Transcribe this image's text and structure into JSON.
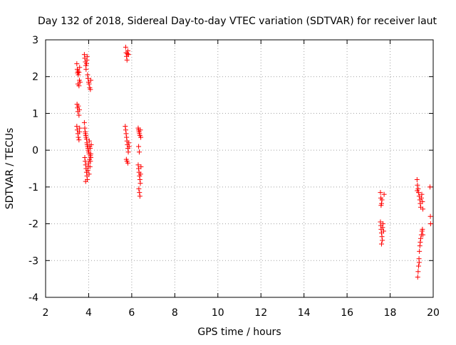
{
  "chart_data": {
    "type": "scatter",
    "title": "Day 132 of 2018, Sidereal Day-to-day VTEC variation (SDTVAR) for receiver laut",
    "xlabel": "GPS time / hours",
    "ylabel": "SDTVAR / TECUs",
    "xlim": [
      2,
      20
    ],
    "ylim": [
      -4,
      3
    ],
    "xticks": [
      2,
      4,
      6,
      8,
      10,
      12,
      14,
      16,
      18,
      20
    ],
    "yticks": [
      -4,
      -3,
      -2,
      -1,
      0,
      1,
      2,
      3
    ],
    "xtick_labels": [
      "2",
      "4",
      "6",
      "8",
      "10",
      "12",
      "14",
      "16",
      "18",
      "20"
    ],
    "ytick_labels": [
      "-4",
      "-3",
      "-2",
      "-1",
      "0",
      "1",
      "2",
      "3"
    ],
    "grid": true,
    "legend": "none",
    "marker": "+",
    "color": "#ff0000",
    "series": [
      {
        "name": "SDTVAR",
        "points": [
          [
            3.45,
            2.35
          ],
          [
            3.47,
            2.2
          ],
          [
            3.48,
            2.1
          ],
          [
            3.5,
            2.15
          ],
          [
            3.52,
            2.05
          ],
          [
            3.55,
            2.12
          ],
          [
            3.57,
            1.9
          ],
          [
            3.5,
            1.8
          ],
          [
            3.55,
            1.75
          ],
          [
            3.6,
            1.85
          ],
          [
            3.58,
            2.25
          ],
          [
            3.46,
            1.25
          ],
          [
            3.48,
            1.15
          ],
          [
            3.5,
            1.05
          ],
          [
            3.52,
            1.2
          ],
          [
            3.55,
            0.95
          ],
          [
            3.57,
            1.1
          ],
          [
            3.45,
            0.65
          ],
          [
            3.47,
            0.55
          ],
          [
            3.5,
            0.45
          ],
          [
            3.52,
            0.35
          ],
          [
            3.55,
            0.28
          ],
          [
            3.57,
            0.5
          ],
          [
            3.58,
            0.6
          ],
          [
            3.8,
            2.6
          ],
          [
            3.82,
            2.5
          ],
          [
            3.85,
            2.4
          ],
          [
            3.87,
            2.3
          ],
          [
            3.88,
            2.2
          ],
          [
            3.9,
            2.35
          ],
          [
            3.92,
            2.45
          ],
          [
            3.93,
            2.55
          ],
          [
            3.95,
            2.05
          ],
          [
            3.97,
            1.95
          ],
          [
            4.0,
            1.85
          ],
          [
            4.02,
            1.8
          ],
          [
            4.05,
            1.7
          ],
          [
            4.08,
            1.65
          ],
          [
            4.1,
            1.9
          ],
          [
            3.8,
            0.75
          ],
          [
            3.82,
            0.6
          ],
          [
            3.84,
            0.5
          ],
          [
            3.85,
            0.45
          ],
          [
            3.87,
            0.4
          ],
          [
            3.88,
            0.35
          ],
          [
            3.9,
            0.3
          ],
          [
            3.92,
            0.2
          ],
          [
            3.93,
            0.15
          ],
          [
            3.95,
            0.1
          ],
          [
            3.97,
            0.05
          ],
          [
            3.98,
            0.0
          ],
          [
            4.0,
            -0.05
          ],
          [
            4.02,
            -0.1
          ],
          [
            4.03,
            0.25
          ],
          [
            4.05,
            0.1
          ],
          [
            4.07,
            0.05
          ],
          [
            4.08,
            -0.15
          ],
          [
            4.1,
            -0.2
          ],
          [
            4.12,
            0.15
          ],
          [
            3.82,
            -0.2
          ],
          [
            3.84,
            -0.3
          ],
          [
            3.86,
            -0.4
          ],
          [
            3.88,
            -0.5
          ],
          [
            3.9,
            -0.6
          ],
          [
            3.92,
            -0.7
          ],
          [
            3.94,
            -0.8
          ],
          [
            3.86,
            -0.85
          ],
          [
            3.96,
            -0.55
          ],
          [
            3.98,
            -0.45
          ],
          [
            4.0,
            -0.35
          ],
          [
            4.02,
            -0.65
          ],
          [
            4.04,
            -0.25
          ],
          [
            4.06,
            -0.45
          ],
          [
            4.08,
            -0.3
          ],
          [
            4.1,
            -0.1
          ],
          [
            5.72,
            2.8
          ],
          [
            5.74,
            2.65
          ],
          [
            5.76,
            2.55
          ],
          [
            5.78,
            2.45
          ],
          [
            5.8,
            2.62
          ],
          [
            5.82,
            2.7
          ],
          [
            5.85,
            2.6
          ],
          [
            5.7,
            0.65
          ],
          [
            5.72,
            0.55
          ],
          [
            5.74,
            0.45
          ],
          [
            5.76,
            0.35
          ],
          [
            5.78,
            0.25
          ],
          [
            5.8,
            0.15
          ],
          [
            5.82,
            0.05
          ],
          [
            5.84,
            -0.05
          ],
          [
            5.86,
            0.2
          ],
          [
            5.88,
            0.1
          ],
          [
            5.75,
            -0.25
          ],
          [
            5.78,
            -0.3
          ],
          [
            5.82,
            -0.35
          ],
          [
            6.3,
            0.6
          ],
          [
            6.32,
            0.55
          ],
          [
            6.34,
            0.5
          ],
          [
            6.36,
            0.45
          ],
          [
            6.38,
            0.4
          ],
          [
            6.4,
            0.55
          ],
          [
            6.42,
            0.35
          ],
          [
            6.32,
            0.1
          ],
          [
            6.35,
            -0.05
          ],
          [
            6.3,
            -0.4
          ],
          [
            6.32,
            -0.5
          ],
          [
            6.34,
            -0.6
          ],
          [
            6.36,
            -0.7
          ],
          [
            6.38,
            -0.8
          ],
          [
            6.4,
            -0.9
          ],
          [
            6.33,
            -1.05
          ],
          [
            6.36,
            -1.15
          ],
          [
            6.38,
            -1.25
          ],
          [
            6.41,
            -0.65
          ],
          [
            6.43,
            -0.45
          ],
          [
            17.55,
            -1.15
          ],
          [
            17.57,
            -1.3
          ],
          [
            17.6,
            -1.45
          ],
          [
            17.62,
            -1.35
          ],
          [
            17.58,
            -1.5
          ],
          [
            17.55,
            -1.95
          ],
          [
            17.57,
            -2.05
          ],
          [
            17.58,
            -2.15
          ],
          [
            17.6,
            -2.25
          ],
          [
            17.62,
            -2.35
          ],
          [
            17.64,
            -2.45
          ],
          [
            17.6,
            -2.55
          ],
          [
            17.65,
            -2.1
          ],
          [
            17.67,
            -2.0
          ],
          [
            17.7,
            -2.2
          ],
          [
            17.72,
            -1.2
          ],
          [
            19.25,
            -0.8
          ],
          [
            19.27,
            -0.95
          ],
          [
            19.3,
            -1.05
          ],
          [
            19.32,
            -1.15
          ],
          [
            19.35,
            -1.25
          ],
          [
            19.38,
            -1.35
          ],
          [
            19.4,
            -1.45
          ],
          [
            19.42,
            -1.55
          ],
          [
            19.45,
            -1.3
          ],
          [
            19.47,
            -1.2
          ],
          [
            19.5,
            -1.4
          ],
          [
            19.52,
            -1.6
          ],
          [
            19.26,
            -1.1
          ],
          [
            19.28,
            -3.45
          ],
          [
            19.3,
            -3.3
          ],
          [
            19.32,
            -3.15
          ],
          [
            19.34,
            -2.95
          ],
          [
            19.36,
            -2.75
          ],
          [
            19.38,
            -2.6
          ],
          [
            19.4,
            -2.5
          ],
          [
            19.42,
            -2.4
          ],
          [
            19.45,
            -2.3
          ],
          [
            19.48,
            -2.2
          ],
          [
            19.5,
            -2.15
          ],
          [
            19.52,
            -2.3
          ],
          [
            19.35,
            -3.05
          ],
          [
            19.85,
            -1.0
          ],
          [
            19.87,
            -1.8
          ],
          [
            19.88,
            -2.0
          ]
        ]
      }
    ]
  }
}
